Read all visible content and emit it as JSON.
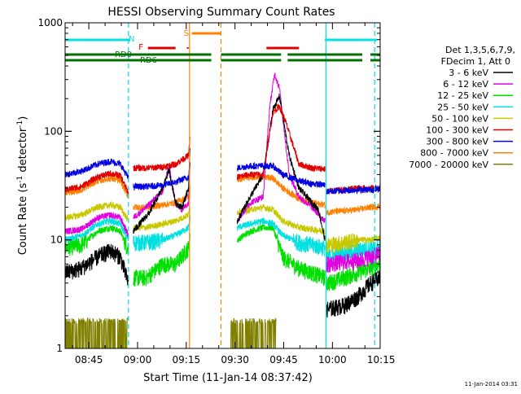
{
  "chart_data": {
    "type": "line",
    "title": "HESSI Observing Summary Count Rates",
    "xlabel": "Start Time (11-Jan-14 08:37:42)",
    "ylabel_main": "Count Rate (s",
    "ylabel_sup1": "-1",
    "ylabel_mid": " detector",
    "ylabel_sup2": "-1",
    "ylabel_end": ")",
    "yscale": "log",
    "ylim": [
      1,
      1000
    ],
    "xlim_minutes": [
      0,
      97
    ],
    "x_ticks": [
      "08:45",
      "09:00",
      "09:15",
      "09:30",
      "09:45",
      "10:00",
      "10:15"
    ],
    "y_ticks": [
      "1",
      "10",
      "100",
      "1000"
    ],
    "footer_date": "11-Jan-2014 03:31",
    "legend": {
      "header1": "Det 1,3,5,6,7,9,",
      "header2": "FDecim 1, Att 0",
      "entries": [
        {
          "label": "3 - 6 keV",
          "color": "#000000"
        },
        {
          "label": "6 - 12 keV",
          "color": "#e000e0"
        },
        {
          "label": "12 - 25 keV",
          "color": "#00e000"
        },
        {
          "label": "25 - 50 keV",
          "color": "#00e0e0"
        },
        {
          "label": "50 - 100 keV",
          "color": "#c8c800"
        },
        {
          "label": "100 - 300 keV",
          "color": "#e00000"
        },
        {
          "label": "300 - 800 keV",
          "color": "#0000e0"
        },
        {
          "label": "800 - 7000 keV",
          "color": "#ff8000"
        },
        {
          "label": "7000 - 20000 keV",
          "color": "#808000"
        }
      ]
    },
    "flags": [
      {
        "label": "N",
        "color": "#00e0e0"
      },
      {
        "label": "F",
        "color": "#e00000"
      },
      {
        "label": "S",
        "color": "#ff8000"
      },
      {
        "label": "RD0",
        "color": "#007000"
      },
      {
        "label": "RD6",
        "color": "#007000"
      }
    ],
    "flag_bars": {
      "N": [
        [
          0,
          20
        ],
        [
          80,
          96
        ]
      ],
      "F": [
        [
          25.5,
          34
        ],
        [
          62,
          72
        ]
      ],
      "S": [
        [
          39,
          48
        ]
      ],
      "RD0": [
        [
          0,
          45
        ],
        [
          48,
          66.5
        ],
        [
          68.5,
          91.5
        ],
        [
          94,
          97
        ]
      ],
      "RD6": [
        [
          0,
          45
        ],
        [
          48,
          66.5
        ],
        [
          68.5,
          91.5
        ],
        [
          94,
          97
        ]
      ]
    },
    "vlines": [
      {
        "x": 19.5,
        "color": "#00e0e0",
        "style": "dashed"
      },
      {
        "x": 38.3,
        "color": "#ff8000",
        "style": "solid"
      },
      {
        "x": 48,
        "color": "#ff8000",
        "style": "dashed"
      },
      {
        "x": 80.3,
        "color": "#00e0e0",
        "style": "solid"
      },
      {
        "x": 95.3,
        "color": "#00e0e0",
        "style": "dashed"
      }
    ],
    "series": [
      {
        "name": "3 - 6 keV",
        "color": "#000000",
        "segments": [
          [
            [
              0,
              5
            ],
            [
              5,
              5.5
            ],
            [
              10,
              7
            ],
            [
              14,
              8
            ],
            [
              17,
              7
            ],
            [
              19.5,
              4
            ]
          ],
          [
            [
              21,
              12
            ],
            [
              26,
              18
            ],
            [
              30,
              30
            ],
            [
              32,
              44
            ],
            [
              34,
              22
            ],
            [
              36,
              20
            ],
            [
              38,
              30
            ],
            [
              38.5,
              70
            ]
          ],
          [
            [
              53,
              15
            ],
            [
              57,
              25
            ],
            [
              61,
              40
            ],
            [
              64,
              160
            ],
            [
              66,
              210
            ],
            [
              69,
              60
            ],
            [
              72,
              30
            ],
            [
              76,
              22
            ],
            [
              78,
              19
            ],
            [
              80,
              10
            ]
          ],
          [
            [
              80.5,
              2.3
            ],
            [
              86,
              2.5
            ],
            [
              90,
              3
            ],
            [
              94,
              4
            ],
            [
              97,
              4.5
            ]
          ]
        ]
      },
      {
        "name": "6 - 12 keV",
        "color": "#e000e0",
        "segments": [
          [
            [
              0,
              12
            ],
            [
              5,
              12.5
            ],
            [
              10,
              16
            ],
            [
              14,
              17
            ],
            [
              17,
              16
            ],
            [
              19.5,
              11
            ]
          ],
          [
            [
              21,
              16
            ],
            [
              25,
              20
            ],
            [
              30,
              28
            ],
            [
              32,
              48
            ],
            [
              34,
              22
            ],
            [
              36,
              19
            ],
            [
              38,
              22
            ],
            [
              38.5,
              60
            ]
          ],
          [
            [
              53,
              15
            ],
            [
              57,
              22
            ],
            [
              61,
              25
            ],
            [
              63,
              170
            ],
            [
              64.5,
              340
            ],
            [
              66,
              250
            ],
            [
              69,
              40
            ],
            [
              72,
              25
            ],
            [
              76,
              20
            ],
            [
              80,
              15
            ]
          ],
          [
            [
              80.5,
              6
            ],
            [
              86,
              6.3
            ],
            [
              90,
              6.5
            ],
            [
              94,
              7
            ],
            [
              97,
              7.5
            ]
          ]
        ]
      },
      {
        "name": "12 - 25 keV",
        "color": "#00e000",
        "segments": [
          [
            [
              0,
              8.5
            ],
            [
              5,
              9
            ],
            [
              10,
              12
            ],
            [
              14,
              13
            ],
            [
              17,
              12
            ],
            [
              19.5,
              8
            ]
          ],
          [
            [
              21,
              4.5
            ],
            [
              25,
              4.5
            ],
            [
              30,
              6
            ],
            [
              34,
              6
            ],
            [
              38,
              8.5
            ],
            [
              38.5,
              11
            ]
          ],
          [
            [
              53,
              10
            ],
            [
              57,
              12
            ],
            [
              61,
              13
            ],
            [
              64,
              13
            ],
            [
              67,
              7
            ],
            [
              72,
              5.5
            ],
            [
              76,
              5
            ],
            [
              80,
              4.5
            ]
          ],
          [
            [
              80.5,
              4
            ],
            [
              86,
              4.5
            ],
            [
              90,
              5
            ],
            [
              94,
              5.5
            ],
            [
              97,
              6
            ]
          ]
        ]
      },
      {
        "name": "25 - 50 keV",
        "color": "#00e0e0",
        "segments": [
          [
            [
              0,
              10
            ],
            [
              5,
              11
            ],
            [
              10,
              14
            ],
            [
              14,
              15
            ],
            [
              17,
              14
            ],
            [
              19.5,
              10
            ]
          ],
          [
            [
              21,
              9.5
            ],
            [
              25,
              9.5
            ],
            [
              30,
              10
            ],
            [
              34,
              11
            ],
            [
              38,
              13
            ],
            [
              38.5,
              16
            ]
          ],
          [
            [
              53,
              13
            ],
            [
              57,
              14
            ],
            [
              61,
              15
            ],
            [
              64,
              14
            ],
            [
              67,
              11
            ],
            [
              72,
              9.5
            ],
            [
              76,
              9
            ],
            [
              80,
              8.5
            ]
          ],
          [
            [
              80.5,
              7
            ],
            [
              86,
              7.5
            ],
            [
              90,
              8
            ],
            [
              94,
              8.5
            ],
            [
              97,
              8.5
            ]
          ]
        ]
      },
      {
        "name": "50 - 100 keV",
        "color": "#c8c800",
        "segments": [
          [
            [
              0,
              16
            ],
            [
              5,
              17
            ],
            [
              10,
              20
            ],
            [
              14,
              21
            ],
            [
              17,
              20
            ],
            [
              19.5,
              15
            ]
          ],
          [
            [
              21,
              13
            ],
            [
              25,
              13
            ],
            [
              30,
              14
            ],
            [
              34,
              15
            ],
            [
              38,
              17
            ],
            [
              38.5,
              21
            ]
          ],
          [
            [
              53,
              18
            ],
            [
              57,
              19
            ],
            [
              61,
              20
            ],
            [
              64,
              19
            ],
            [
              67,
              15
            ],
            [
              72,
              13
            ],
            [
              76,
              12.5
            ],
            [
              80,
              12
            ]
          ],
          [
            [
              80.5,
              9
            ],
            [
              86,
              9.5
            ],
            [
              90,
              10
            ],
            [
              94,
              10
            ],
            [
              97,
              10.5
            ]
          ]
        ]
      },
      {
        "name": "100 - 300 keV",
        "color": "#e00000",
        "segments": [
          [
            [
              0,
              29
            ],
            [
              5,
              31
            ],
            [
              10,
              38
            ],
            [
              14,
              41
            ],
            [
              17,
              39
            ],
            [
              19.5,
              27
            ]
          ],
          [
            [
              21,
              46
            ],
            [
              25,
              46
            ],
            [
              30,
              47
            ],
            [
              34,
              50
            ],
            [
              38,
              60
            ],
            [
              38.5,
              90
            ]
          ],
          [
            [
              53,
              38
            ],
            [
              57,
              40
            ],
            [
              61,
              40
            ],
            [
              64,
              150
            ],
            [
              66,
              170
            ],
            [
              68,
              120
            ],
            [
              72,
              50
            ],
            [
              76,
              46
            ],
            [
              80,
              45
            ]
          ],
          [
            [
              80.5,
              28
            ],
            [
              86,
              29
            ],
            [
              90,
              30
            ],
            [
              94,
              30
            ],
            [
              97,
              30
            ]
          ]
        ]
      },
      {
        "name": "300 - 800 keV",
        "color": "#0000e0",
        "segments": [
          [
            [
              0,
              40
            ],
            [
              5,
              43
            ],
            [
              10,
              50
            ],
            [
              14,
              53
            ],
            [
              17,
              50
            ],
            [
              19.5,
              37
            ]
          ],
          [
            [
              21,
              31
            ],
            [
              25,
              31
            ],
            [
              30,
              32
            ],
            [
              34,
              34
            ],
            [
              38,
              38
            ],
            [
              38.5,
              50
            ]
          ],
          [
            [
              53,
              46
            ],
            [
              57,
              48
            ],
            [
              61,
              48
            ],
            [
              64,
              48
            ],
            [
              67,
              40
            ],
            [
              72,
              35
            ],
            [
              76,
              33
            ],
            [
              80,
              32
            ]
          ],
          [
            [
              80.5,
              28
            ],
            [
              86,
              28.5
            ],
            [
              90,
              29
            ],
            [
              94,
              29
            ],
            [
              97,
              29.5
            ]
          ]
        ]
      },
      {
        "name": "800 - 7000 keV",
        "color": "#ff8000",
        "segments": [
          [
            [
              0,
              27
            ],
            [
              5,
              29
            ],
            [
              10,
              35
            ],
            [
              14,
              37
            ],
            [
              17,
              35
            ],
            [
              19.5,
              25
            ]
          ],
          [
            [
              21,
              20
            ],
            [
              25,
              20
            ],
            [
              30,
              21
            ],
            [
              34,
              22
            ],
            [
              38,
              25
            ],
            [
              38.5,
              30
            ]
          ],
          [
            [
              53,
              36
            ],
            [
              57,
              38
            ],
            [
              61,
              38
            ],
            [
              64,
              37
            ],
            [
              67,
              30
            ],
            [
              72,
              24
            ],
            [
              76,
              22
            ],
            [
              80,
              21
            ]
          ],
          [
            [
              80.5,
              18
            ],
            [
              86,
              18.5
            ],
            [
              90,
              19
            ],
            [
              94,
              20
            ],
            [
              97,
              20.5
            ]
          ]
        ]
      },
      {
        "name": "7000 - 20000 keV",
        "color": "#808000",
        "segments": [
          [
            [
              0,
              1.7
            ],
            [
              19.5,
              1.7
            ]
          ],
          [
            [
              51,
              1.7
            ],
            [
              65,
              1.7
            ]
          ]
        ]
      }
    ]
  }
}
